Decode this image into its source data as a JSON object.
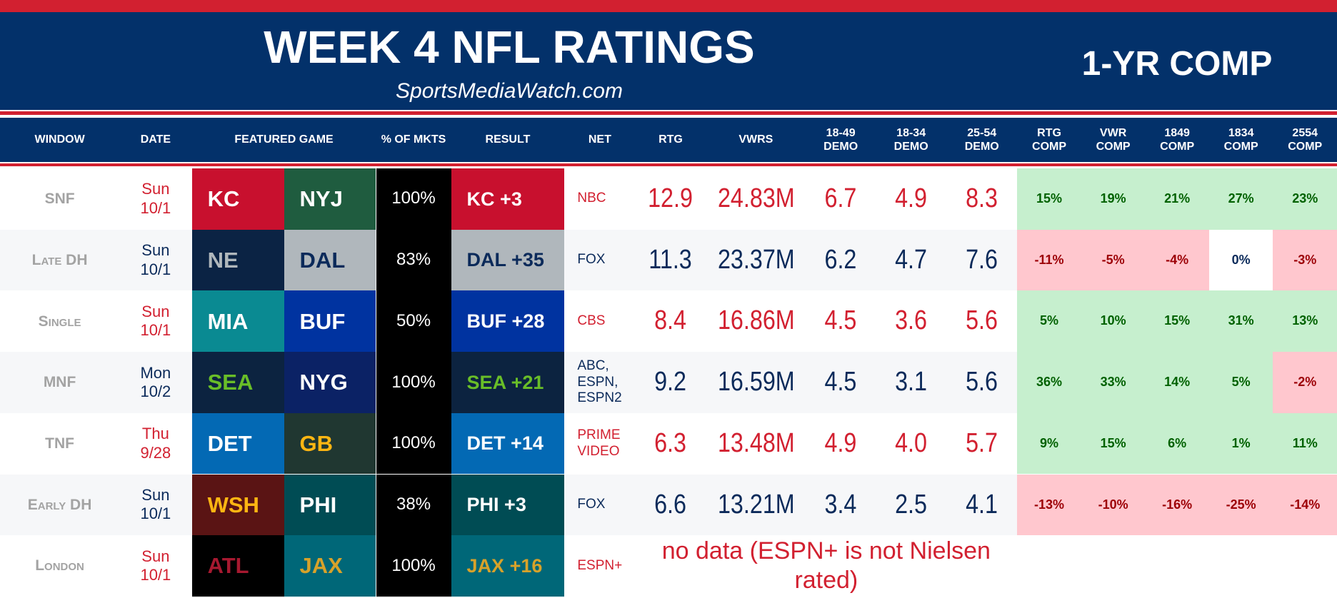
{
  "header": {
    "title": "WEEK 4 NFL RATINGS",
    "subtitle": "SportsMediaWatch.com",
    "comp_label": "1-YR COMP"
  },
  "table": {
    "columns": [
      "WINDOW",
      "DATE",
      "FEATURED GAME",
      "% OF MKTS",
      "RESULT",
      "NET",
      "RTG",
      "VWRS",
      "18-49\nDEMO",
      "18-34\nDEMO",
      "25-54\nDEMO",
      "RTG\nCOMP",
      "VWR\nCOMP",
      "1849\nCOMP",
      "1834\nCOMP",
      "2554\nCOMP"
    ],
    "rows": [
      {
        "window": "SNF",
        "date": "Sun\n10/1",
        "away": "KC",
        "home": "NYJ",
        "markets": "100%",
        "result": "KC +3",
        "net": "NBC",
        "rtg": "12.9",
        "viewers": "24.83M",
        "demo_1849": "6.7",
        "demo_1834": "4.9",
        "demo_2554": "8.3",
        "comps": [
          "15%",
          "19%",
          "21%",
          "27%",
          "23%"
        ]
      },
      {
        "window": "Late DH",
        "date": "Sun\n10/1",
        "away": "NE",
        "home": "DAL",
        "markets": "83%",
        "result": "DAL +35",
        "net": "FOX",
        "rtg": "11.3",
        "viewers": "23.37M",
        "demo_1849": "6.2",
        "demo_1834": "4.7",
        "demo_2554": "7.6",
        "comps": [
          "-11%",
          "-5%",
          "-4%",
          "0%",
          "-3%"
        ]
      },
      {
        "window": "Single",
        "date": "Sun\n10/1",
        "away": "MIA",
        "home": "BUF",
        "markets": "50%",
        "result": "BUF +28",
        "net": "CBS",
        "rtg": "8.4",
        "viewers": "16.86M",
        "demo_1849": "4.5",
        "demo_1834": "3.6",
        "demo_2554": "5.6",
        "comps": [
          "5%",
          "10%",
          "15%",
          "31%",
          "13%"
        ]
      },
      {
        "window": "MNF",
        "date": "Mon\n10/2",
        "away": "SEA",
        "home": "NYG",
        "markets": "100%",
        "result": "SEA +21",
        "net": "ABC,\nESPN,\nESPN2",
        "rtg": "9.2",
        "viewers": "16.59M",
        "demo_1849": "4.5",
        "demo_1834": "3.1",
        "demo_2554": "5.6",
        "comps": [
          "36%",
          "33%",
          "14%",
          "5%",
          "-2%"
        ]
      },
      {
        "window": "TNF",
        "date": "Thu\n9/28",
        "away": "DET",
        "home": "GB",
        "markets": "100%",
        "result": "DET +14",
        "net": "PRIME\nVIDEO",
        "rtg": "6.3",
        "viewers": "13.48M",
        "demo_1849": "4.9",
        "demo_1834": "4.0",
        "demo_2554": "5.7",
        "comps": [
          "9%",
          "15%",
          "6%",
          "1%",
          "11%"
        ]
      },
      {
        "window": "Early DH",
        "date": "Sun\n10/1",
        "away": "WSH",
        "home": "PHI",
        "markets": "38%",
        "result": "PHI +3",
        "net": "FOX",
        "rtg": "6.6",
        "viewers": "13.21M",
        "demo_1849": "3.4",
        "demo_1834": "2.5",
        "demo_2554": "4.1",
        "comps": [
          "-13%",
          "-10%",
          "-16%",
          "-25%",
          "-14%"
        ]
      },
      {
        "window": "London",
        "date": "Sun\n10/1",
        "away": "ATL",
        "home": "JAX",
        "markets": "100%",
        "result": "JAX +16",
        "net": "ESPN+",
        "note": "no data (ESPN+ is not Nielsen rated)"
      }
    ]
  }
}
